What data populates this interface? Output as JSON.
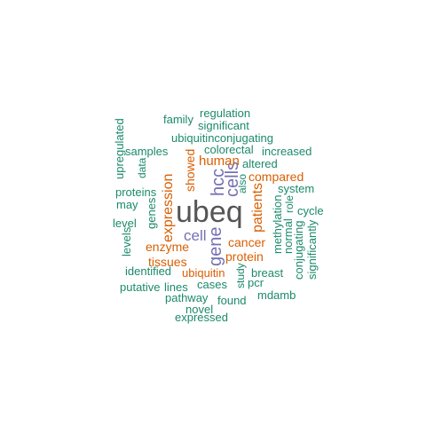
{
  "colors": {
    "background": "#ffffff",
    "teal": "#1b8a6b",
    "orange": "#d95f02",
    "purple": "#7570b3",
    "gray": "#555555"
  },
  "words": [
    {
      "text": "ubeq",
      "color": "gray"
    },
    {
      "text": "gene",
      "color": "purple"
    },
    {
      "text": "hcc",
      "color": "purple"
    },
    {
      "text": "cells",
      "color": "purple"
    },
    {
      "text": "cell",
      "color": "purple"
    },
    {
      "text": "expression",
      "color": "orange"
    },
    {
      "text": "patients",
      "color": "orange"
    },
    {
      "text": "human",
      "color": "orange"
    },
    {
      "text": "showed",
      "color": "orange"
    },
    {
      "text": "compared",
      "color": "orange"
    },
    {
      "text": "cancer",
      "color": "orange"
    },
    {
      "text": "protein",
      "color": "orange"
    },
    {
      "text": "enzyme",
      "color": "orange"
    },
    {
      "text": "tissues",
      "color": "orange"
    },
    {
      "text": "ubiquitin",
      "color": "orange"
    },
    {
      "text": "regulation",
      "color": "teal"
    },
    {
      "text": "family",
      "color": "teal"
    },
    {
      "text": "significant",
      "color": "teal"
    },
    {
      "text": "ubiquitinconjugating",
      "color": "teal"
    },
    {
      "text": "colorectal",
      "color": "teal"
    },
    {
      "text": "increased",
      "color": "teal"
    },
    {
      "text": "samples",
      "color": "teal"
    },
    {
      "text": "altered",
      "color": "teal"
    },
    {
      "text": "upregulated",
      "color": "teal"
    },
    {
      "text": "data",
      "color": "teal"
    },
    {
      "text": "system",
      "color": "teal"
    },
    {
      "text": "proteins",
      "color": "teal"
    },
    {
      "text": "also",
      "color": "teal"
    },
    {
      "text": "may",
      "color": "teal"
    },
    {
      "text": "genes",
      "color": "teal"
    },
    {
      "text": "role",
      "color": "teal"
    },
    {
      "text": "cycle",
      "color": "teal"
    },
    {
      "text": "level",
      "color": "teal"
    },
    {
      "text": "methylation",
      "color": "teal"
    },
    {
      "text": "normal",
      "color": "teal"
    },
    {
      "text": "levels",
      "color": "teal"
    },
    {
      "text": "conjugating",
      "color": "teal"
    },
    {
      "text": "significantly",
      "color": "teal"
    },
    {
      "text": "identified",
      "color": "teal"
    },
    {
      "text": "breast",
      "color": "teal"
    },
    {
      "text": "study",
      "color": "teal"
    },
    {
      "text": "putative",
      "color": "teal"
    },
    {
      "text": "lines",
      "color": "teal"
    },
    {
      "text": "cases",
      "color": "teal"
    },
    {
      "text": "pcr",
      "color": "teal"
    },
    {
      "text": "pathway",
      "color": "teal"
    },
    {
      "text": "found",
      "color": "teal"
    },
    {
      "text": "mdamb",
      "color": "teal"
    },
    {
      "text": "novel",
      "color": "teal"
    },
    {
      "text": "expressed",
      "color": "teal"
    }
  ]
}
